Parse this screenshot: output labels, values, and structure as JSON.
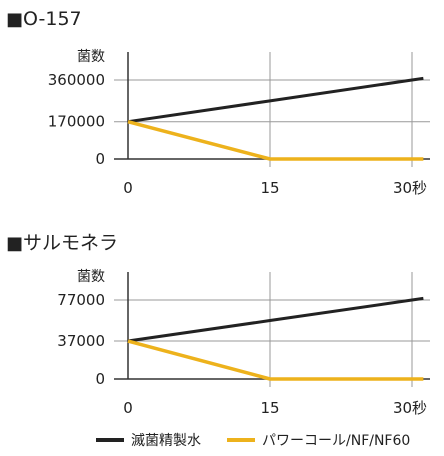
{
  "charts": [
    {
      "title": "O-157"
    },
    {
      "title": "サルモネラ"
    }
  ],
  "colors": {
    "black": "#222222",
    "yellow": "#EDB21C",
    "grid": "#999999"
  },
  "chart_data": [
    {
      "type": "line",
      "title": "O-157",
      "ylabel": "菌数",
      "xlabel": "",
      "x_ticks": [
        "0",
        "15",
        "30秒"
      ],
      "y_ticks": [
        "0",
        "170000",
        "360000"
      ],
      "x": [
        0,
        15,
        30
      ],
      "ylim": [
        0,
        360000
      ],
      "series": [
        {
          "name": "滅菌精製水",
          "values": [
            170000,
            265000,
            360000
          ],
          "color": "#222222"
        },
        {
          "name": "パワーコール/NF/NF60",
          "values": [
            170000,
            0,
            0
          ],
          "color": "#EDB21C"
        }
      ]
    },
    {
      "type": "line",
      "title": "サルモネラ",
      "ylabel": "菌数",
      "xlabel": "",
      "x_ticks": [
        "0",
        "15",
        "30秒"
      ],
      "y_ticks": [
        "0",
        "37000",
        "77000"
      ],
      "x": [
        0,
        15,
        30
      ],
      "ylim": [
        0,
        77000
      ],
      "series": [
        {
          "name": "滅菌精製水",
          "values": [
            37000,
            57000,
            77000
          ],
          "color": "#222222"
        },
        {
          "name": "パワーコール/NF/NF60",
          "values": [
            37000,
            0,
            0
          ],
          "color": "#EDB21C"
        }
      ]
    }
  ],
  "legend": [
    {
      "label": "滅菌精製水",
      "color": "#222222"
    },
    {
      "label": "パワーコール/NF/NF60",
      "color": "#EDB21C"
    }
  ]
}
